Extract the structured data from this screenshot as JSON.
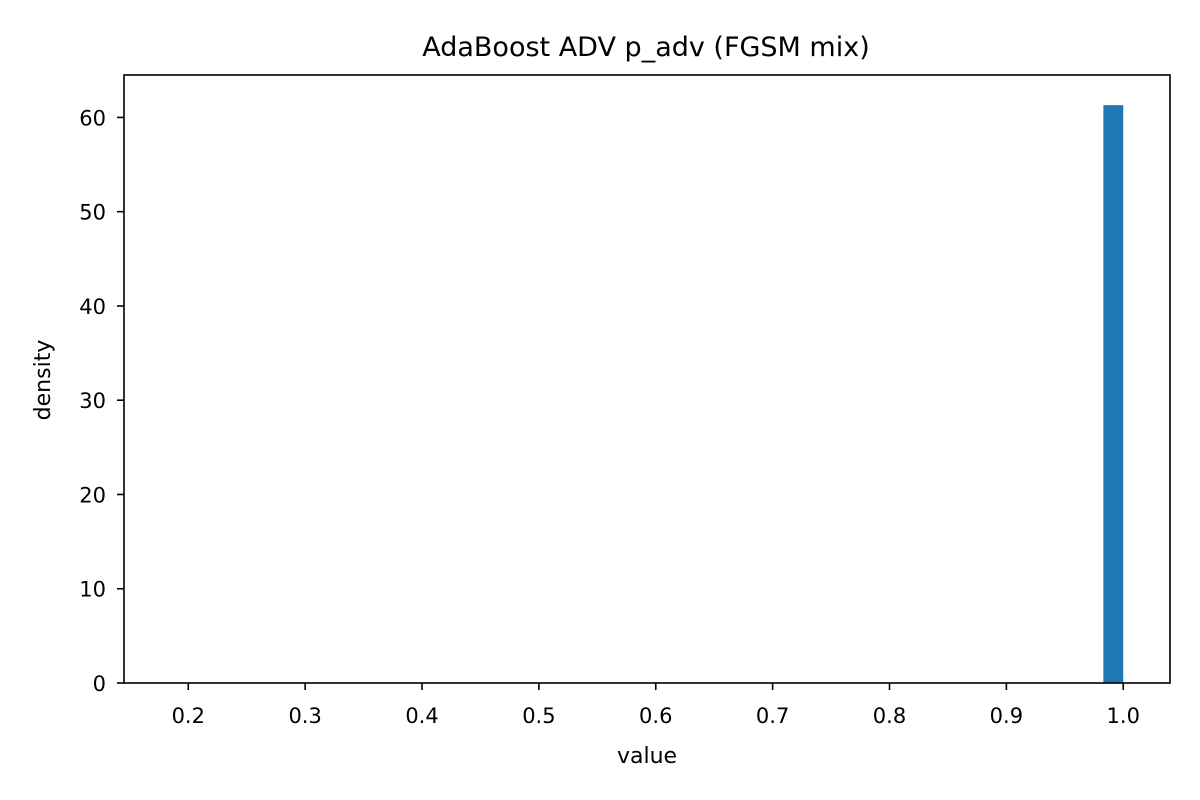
{
  "chart_data": {
    "type": "bar",
    "title": "AdaBoost ADV p_adv (FGSM mix)",
    "xlabel": "value",
    "ylabel": "density",
    "xlim": [
      0.145,
      1.04
    ],
    "ylim": [
      0,
      64.5
    ],
    "xticks": [
      0.2,
      0.3,
      0.4,
      0.5,
      0.6,
      0.7,
      0.8,
      0.9,
      1.0
    ],
    "xtick_labels": [
      "0.2",
      "0.3",
      "0.4",
      "0.5",
      "0.6",
      "0.7",
      "0.8",
      "0.9",
      "1.0"
    ],
    "yticks": [
      0,
      10,
      20,
      30,
      40,
      50,
      60
    ],
    "ytick_labels": [
      "0",
      "10",
      "20",
      "30",
      "40",
      "50",
      "60"
    ],
    "bins": [
      {
        "x0": 0.983,
        "x1": 1.0,
        "value": 61.3
      }
    ],
    "bar_color": "#1f77b4",
    "grid": false,
    "legend": null
  }
}
